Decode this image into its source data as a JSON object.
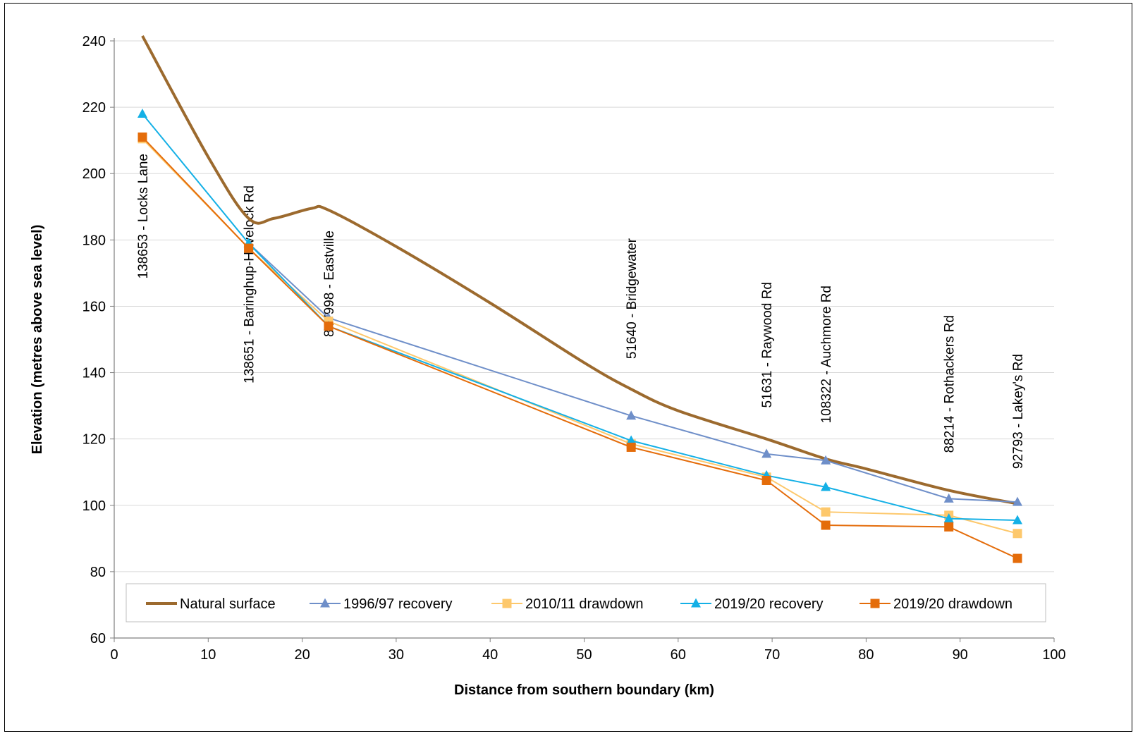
{
  "chart_data": {
    "type": "line",
    "title": "",
    "xlabel": "Distance from southern boundary (km)",
    "ylabel": "Elevation (metres above sea level)",
    "xlim": [
      0,
      100
    ],
    "ylim": [
      60,
      240
    ],
    "xticks": [
      0,
      10,
      20,
      30,
      40,
      50,
      60,
      70,
      80,
      90,
      100
    ],
    "yticks": [
      60,
      80,
      100,
      120,
      140,
      160,
      180,
      200,
      220,
      240
    ],
    "grid": "horizontal",
    "legend_position": "bottom",
    "site_labels": [
      {
        "x": 3,
        "text": "138653 - Locks Lane"
      },
      {
        "x": 14.3,
        "text": "138651 - Baringhup-Havelock  Rd"
      },
      {
        "x": 22.8,
        "text": "847998 - Eastville"
      },
      {
        "x": 55,
        "text": "51640 - Bridgewater"
      },
      {
        "x": 69.4,
        "text": "51631 - Raywood Rd"
      },
      {
        "x": 75.7,
        "text": "108322 - Auchmore Rd"
      },
      {
        "x": 88.8,
        "text": "88214 - Rothackers Rd"
      },
      {
        "x": 96.1,
        "text": "92793 - Lakey's Rd"
      }
    ],
    "series": [
      {
        "name": "Natural surface",
        "color": "#9c6a2e",
        "marker": "none",
        "smooth": true,
        "x": [
          3,
          10,
          14.3,
          17,
          21,
          22.8,
          30,
          40,
          50,
          55,
          60,
          69.4,
          75.7,
          80,
          88.8,
          96.1
        ],
        "y": [
          241.5,
          205,
          186.5,
          186.5,
          189.5,
          189,
          178,
          161,
          143,
          135,
          128.5,
          120,
          114,
          111,
          104.5,
          100.5
        ]
      },
      {
        "name": "1996/97 recovery",
        "color": "#6f8fc9",
        "marker": "triangle",
        "x": [
          14.3,
          22.8,
          55,
          69.4,
          75.7,
          88.8,
          96.1
        ],
        "y": [
          179,
          156.5,
          127,
          115.5,
          113.5,
          102,
          101
        ]
      },
      {
        "name": "2010/11 drawdown",
        "color": "#fdc86c",
        "marker": "square",
        "x": [
          3,
          14.3,
          22.8,
          55,
          69.4,
          75.7,
          88.8,
          96.1
        ],
        "y": [
          210.5,
          177.5,
          155.5,
          118.5,
          108.5,
          98,
          97,
          91.5
        ]
      },
      {
        "name": "2019/20 recovery",
        "color": "#14b0e6",
        "marker": "triangle",
        "x": [
          3,
          14.3,
          22.8,
          55,
          69.4,
          75.7,
          88.8,
          96.1
        ],
        "y": [
          218,
          179,
          154,
          119.5,
          109,
          105.5,
          96,
          95.5
        ]
      },
      {
        "name": "2019/20 drawdown",
        "color": "#e46c0a",
        "marker": "square",
        "x": [
          3,
          14.3,
          22.8,
          55,
          69.4,
          75.7,
          88.8,
          96.1
        ],
        "y": [
          211,
          177.5,
          154,
          117.5,
          107.5,
          94,
          93.5,
          84
        ]
      }
    ]
  }
}
